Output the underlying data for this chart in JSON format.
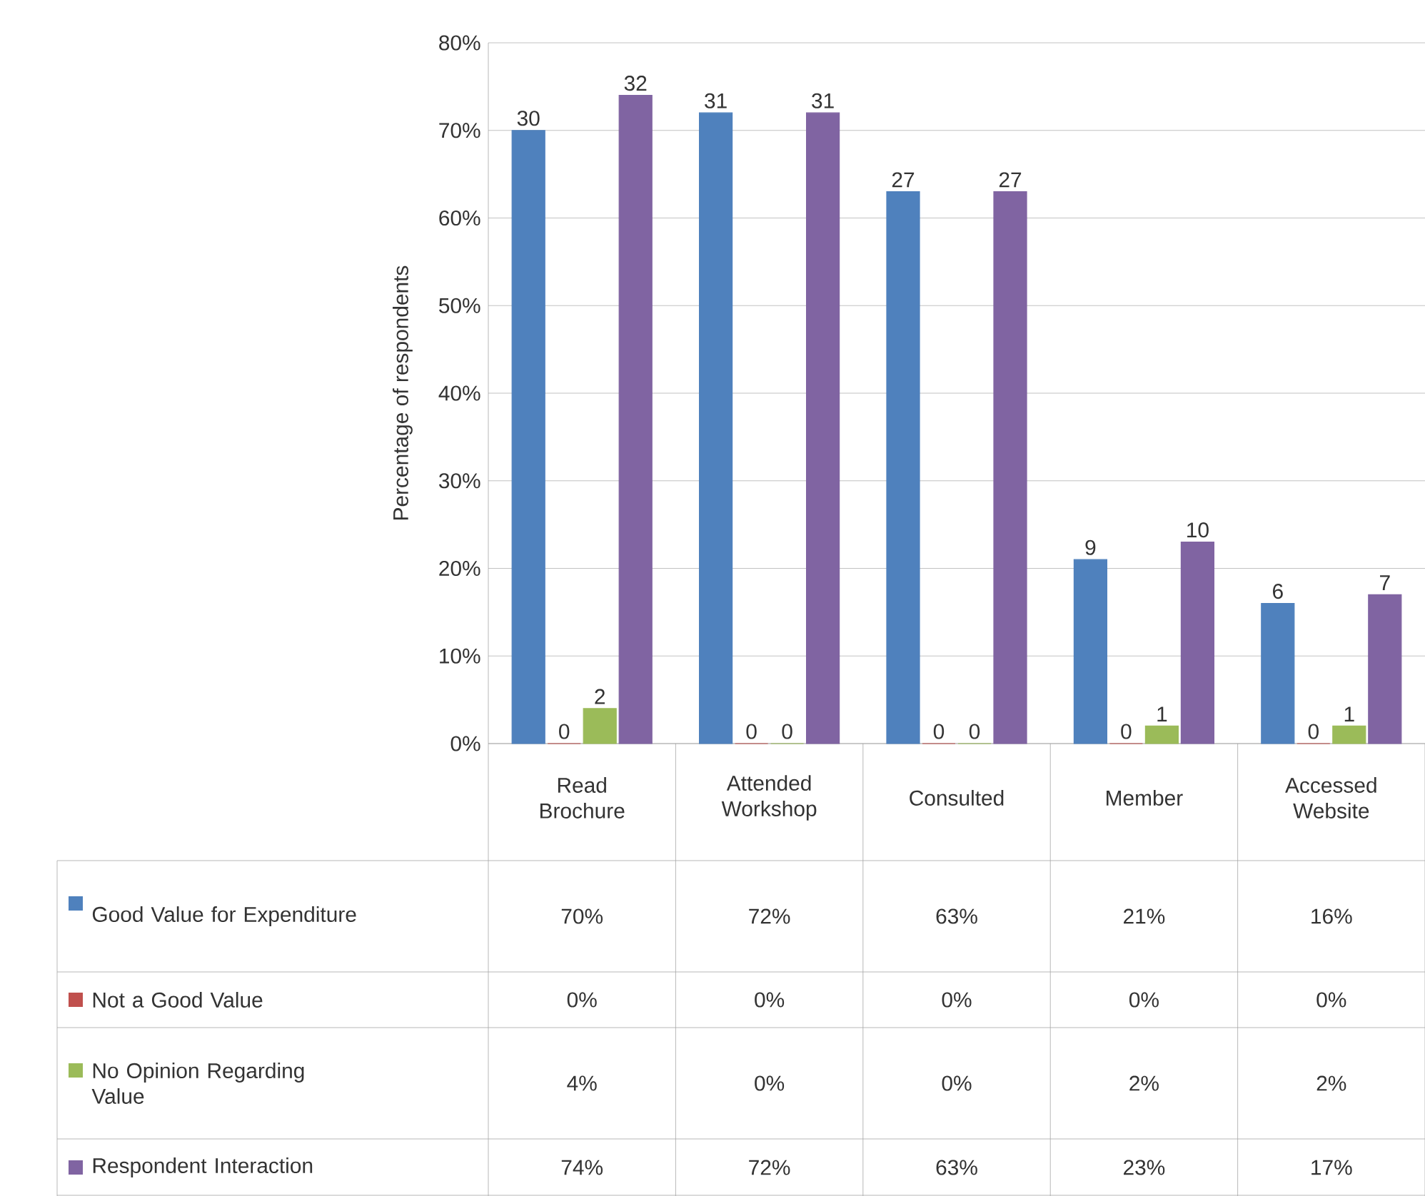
{
  "chart_data": {
    "type": "bar",
    "ylabel": "Percentage of respondents",
    "categories": [
      "Read Brochure",
      "Attended Workshop",
      "Consulted",
      "Member",
      "Accessed Website"
    ],
    "series": [
      {
        "name": "Good Value for Expenditure",
        "color": "#4f81bd",
        "values": [
          70,
          72,
          63,
          21,
          16
        ],
        "value_labels": [
          "70%",
          "72%",
          "63%",
          "21%",
          "16%"
        ]
      },
      {
        "name": "Not a Good Value",
        "color": "#c0504d",
        "values": [
          0,
          0,
          0,
          0,
          0
        ],
        "value_labels": [
          "0%",
          "0%",
          "0%",
          "0%",
          "0%"
        ]
      },
      {
        "name": "No Opinion Regarding Value",
        "color": "#9bbb59",
        "values": [
          4,
          0,
          0,
          2,
          2
        ],
        "value_labels": [
          "4%",
          "0%",
          "0%",
          "2%",
          "2%"
        ]
      },
      {
        "name": "Respondent Interaction",
        "color": "#8064a2",
        "values": [
          74,
          72,
          63,
          23,
          17
        ],
        "value_labels": [
          "74%",
          "72%",
          "63%",
          "23%",
          "17%"
        ]
      }
    ],
    "annotations": [
      "30",
      "0",
      "2",
      "32",
      "31",
      "0",
      "0",
      "31",
      "27",
      "0",
      "0",
      "27",
      "9",
      "0",
      "1",
      "10",
      "6",
      "0",
      "1",
      "7"
    ],
    "ylim": [
      0,
      80
    ],
    "yticks": [
      {
        "value": 0,
        "label": "0%"
      },
      {
        "value": 10,
        "label": "10%"
      },
      {
        "value": 20,
        "label": "20%"
      },
      {
        "value": 30,
        "label": "30%"
      },
      {
        "value": 40,
        "label": "40%"
      },
      {
        "value": 50,
        "label": "50%"
      },
      {
        "value": 60,
        "label": "60%"
      },
      {
        "value": 70,
        "label": "70%"
      },
      {
        "value": 80,
        "label": "80%"
      }
    ],
    "grid": "y",
    "legend": "bottom"
  }
}
